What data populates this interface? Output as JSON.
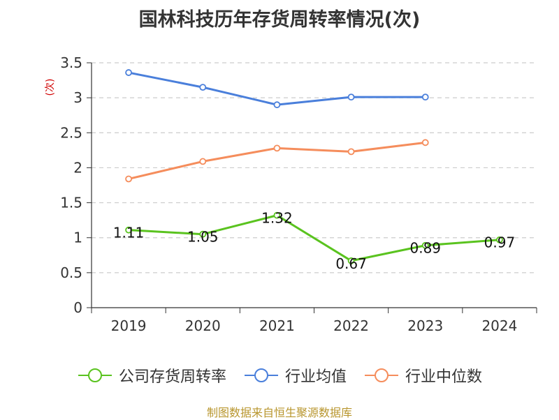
{
  "title": "国林科技历年存货周转率情况(次)",
  "source": "制图数据来自恒生聚源数据库",
  "chart_data": {
    "type": "line",
    "categories": [
      "2019",
      "2020",
      "2021",
      "2022",
      "2023",
      "2024"
    ],
    "ylabel": "(次)",
    "ylim": [
      0,
      3.5
    ],
    "yticks": [
      "0",
      "0.5",
      "1",
      "1.5",
      "2",
      "2.5",
      "3",
      "3.5"
    ],
    "grid": true,
    "legend_position": "bottom",
    "series": [
      {
        "name": "公司存货周转率",
        "values": [
          1.11,
          1.05,
          1.32,
          0.67,
          0.89,
          0.97
        ],
        "labels": [
          "1.11",
          "1.05",
          "1.32",
          "0.67",
          "0.89",
          "0.97"
        ],
        "color": "#5ac31f"
      },
      {
        "name": "行业均值",
        "values": [
          3.36,
          3.15,
          2.9,
          3.01,
          3.01,
          null
        ],
        "color": "#4a7fdb"
      },
      {
        "name": "行业中位数",
        "values": [
          1.84,
          2.09,
          2.28,
          2.23,
          2.36,
          null
        ],
        "color": "#f58d5c"
      }
    ]
  }
}
